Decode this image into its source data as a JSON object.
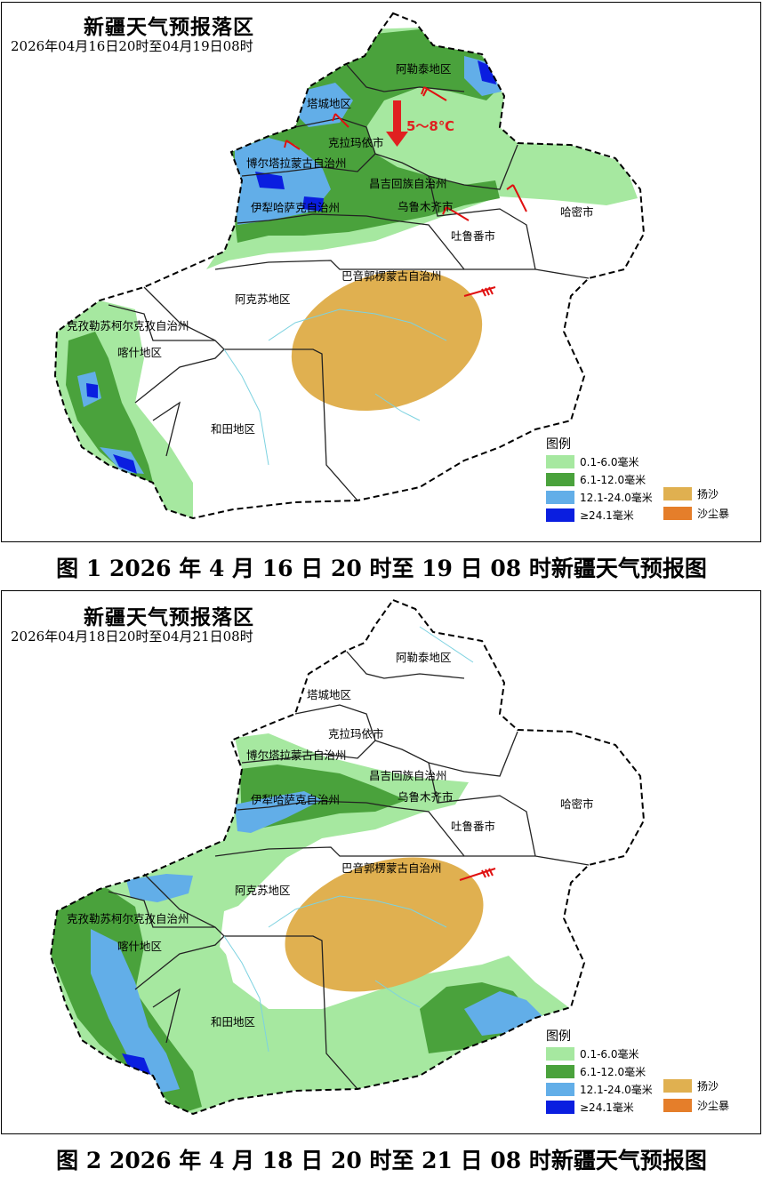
{
  "colors": {
    "light_green": "#a6e8a0",
    "green": "#4aa23c",
    "light_blue": "#62aee8",
    "dark_blue": "#0a1ee0",
    "dust": "#e0b050",
    "sandstorm": "#e57e2a",
    "wind": "#e01010"
  },
  "maps": [
    {
      "title": "新疆天气预报落区",
      "period": "2026年04月16日20时至04月19日08时",
      "caption": "图 1 2026 年 4 月 16 日 20 时至 19 日 08 时新疆天气预报图",
      "temp_drop": "5～8℃",
      "regions": [
        "阿勒泰地区",
        "塔城地区",
        "克拉玛依市",
        "博尔塔拉蒙古自治州",
        "昌吉回族自治州",
        "伊犁哈萨克自治州",
        "乌鲁木齐市",
        "吐鲁番市",
        "哈密市",
        "巴音郭楞蒙古自治州",
        "阿克苏地区",
        "克孜勒苏柯尔克孜自治州",
        "喀什地区",
        "和田地区"
      ]
    },
    {
      "title": "新疆天气预报落区",
      "period": "2026年04月18日20时至04月21日08时",
      "caption": "图 2 2026 年 4 月 18 日 20 时至 21 日 08 时新疆天气预报图",
      "regions": [
        "阿勒泰地区",
        "塔城地区",
        "克拉玛依市",
        "博尔塔拉蒙古自治州",
        "昌吉回族自治州",
        "伊犁哈萨克自治州",
        "乌鲁木齐市",
        "吐鲁番市",
        "哈密市",
        "巴音郭楞蒙古自治州",
        "阿克苏地区",
        "克孜勒苏柯尔克孜自治州",
        "喀什地区",
        "和田地区"
      ]
    }
  ],
  "legend": {
    "title": "图例",
    "items": [
      "0.1-6.0毫米",
      "6.1-12.0毫米",
      "12.1-24.0毫米",
      "≥24.1毫米"
    ],
    "extra": [
      "扬沙",
      "沙尘暴"
    ]
  }
}
